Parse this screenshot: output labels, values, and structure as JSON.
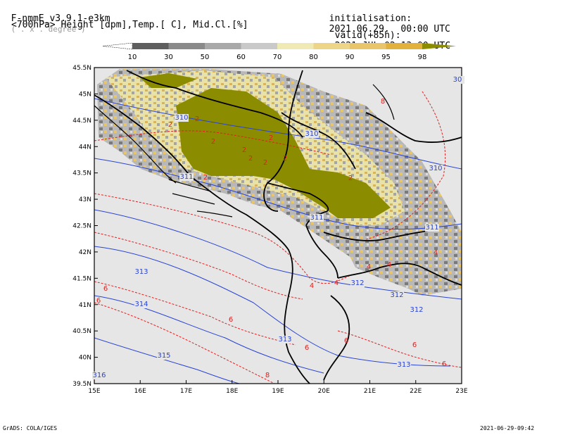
{
  "header": {
    "model": "F-nmmE_v3.9.1-e3km",
    "unit_note": "( . x . degree )",
    "init_label": "initialisation:",
    "init_value": "2021.06.29.  00:00 UTC",
    "field": "<700hPa> Height [dpm],Temp.[ C], Mid.Cl.[%]",
    "valid_label": "valid(+85h):",
    "valid_value": "2021.JUL.02 13:00 UTC"
  },
  "colorbar": {
    "labels": [
      "10",
      "30",
      "50",
      "60",
      "70",
      "80",
      "90",
      "95",
      "98"
    ],
    "colors": [
      "#ffffff",
      "#5e5e5e",
      "#8a8a8a",
      "#a9a9a9",
      "#c9c9c9",
      "#efe9b4",
      "#ecd587",
      "#e8c56a",
      "#e2b13c",
      "#8c8c00"
    ]
  },
  "map": {
    "lat_labels": [
      "45.5N",
      "45N",
      "44.5N",
      "44N",
      "43.5N",
      "43N",
      "42.5N",
      "42N",
      "41.5N",
      "41N",
      "40.5N",
      "40N",
      "39.5N"
    ],
    "lon_labels": [
      "15E",
      "16E",
      "17E",
      "18E",
      "19E",
      "20E",
      "21E",
      "22E",
      "23E"
    ],
    "height_labels": [
      "310",
      "310",
      "311",
      "311",
      "311",
      "312",
      "312",
      "312",
      "313",
      "313",
      "313",
      "314",
      "315",
      "316",
      "310",
      "30"
    ],
    "temp_labels": [
      "2",
      "2",
      "2",
      "2",
      "2",
      "2",
      "2",
      "2",
      "2",
      "2",
      "4",
      "4",
      "4",
      "4",
      "4",
      "6",
      "6",
      "6",
      "6",
      "6",
      "6",
      "6",
      "8",
      "8"
    ]
  },
  "footer": {
    "left": "GrADS: COLA/IGES",
    "right": "2021-06-29-09:42"
  }
}
